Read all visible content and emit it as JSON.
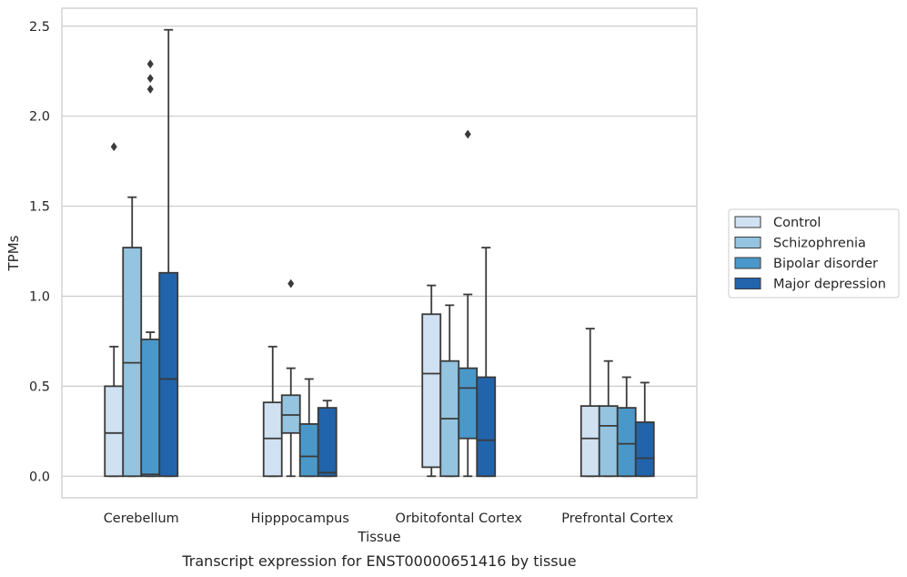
{
  "chart_data": {
    "type": "box",
    "title": "",
    "caption": "Transcript expression for ENST00000651416 by tissue",
    "xlabel": "Tissue",
    "ylabel": "TPMs",
    "ylim": [
      -0.12,
      2.6
    ],
    "yticks": [
      0.0,
      0.5,
      1.0,
      1.5,
      2.0,
      2.5
    ],
    "ytick_labels": [
      "0.0",
      "0.5",
      "1.0",
      "1.5",
      "2.0",
      "2.5"
    ],
    "grid": "horizontal",
    "legend_position": "right",
    "categories": [
      "Cerebellum",
      "Hipppocampus",
      "Orbitofontal Cortex",
      "Prefrontal Cortex"
    ],
    "series": [
      {
        "name": "Control",
        "color": "#d0e1f2",
        "boxes": [
          {
            "whisker_low": 0.0,
            "q1": 0.0,
            "median": 0.24,
            "q3": 0.5,
            "whisker_high": 0.72,
            "outliers": [
              1.83
            ]
          },
          {
            "whisker_low": 0.0,
            "q1": 0.0,
            "median": 0.21,
            "q3": 0.41,
            "whisker_high": 0.72,
            "outliers": []
          },
          {
            "whisker_low": 0.0,
            "q1": 0.05,
            "median": 0.57,
            "q3": 0.9,
            "whisker_high": 1.06,
            "outliers": []
          },
          {
            "whisker_low": 0.0,
            "q1": 0.0,
            "median": 0.21,
            "q3": 0.39,
            "whisker_high": 0.82,
            "outliers": []
          }
        ]
      },
      {
        "name": "Schizophrenia",
        "color": "#94c4df",
        "boxes": [
          {
            "whisker_low": 0.0,
            "q1": 0.0,
            "median": 0.63,
            "q3": 1.27,
            "whisker_high": 1.55,
            "outliers": []
          },
          {
            "whisker_low": 0.0,
            "q1": 0.24,
            "median": 0.34,
            "q3": 0.45,
            "whisker_high": 0.6,
            "outliers": [
              1.07
            ]
          },
          {
            "whisker_low": 0.0,
            "q1": 0.0,
            "median": 0.32,
            "q3": 0.64,
            "whisker_high": 0.95,
            "outliers": []
          },
          {
            "whisker_low": 0.0,
            "q1": 0.0,
            "median": 0.28,
            "q3": 0.39,
            "whisker_high": 0.64,
            "outliers": []
          }
        ]
      },
      {
        "name": "Bipolar disorder",
        "color": "#4a98c9",
        "boxes": [
          {
            "whisker_low": 0.0,
            "q1": 0.0,
            "median": 0.01,
            "q3": 0.76,
            "whisker_high": 0.8,
            "outliers": [
              2.15,
              2.21,
              2.29
            ]
          },
          {
            "whisker_low": 0.0,
            "q1": 0.0,
            "median": 0.11,
            "q3": 0.29,
            "whisker_high": 0.54,
            "outliers": []
          },
          {
            "whisker_low": 0.0,
            "q1": 0.21,
            "median": 0.49,
            "q3": 0.6,
            "whisker_high": 1.01,
            "outliers": [
              1.9
            ]
          },
          {
            "whisker_low": 0.0,
            "q1": 0.0,
            "median": 0.18,
            "q3": 0.38,
            "whisker_high": 0.55,
            "outliers": []
          }
        ]
      },
      {
        "name": "Major depression",
        "color": "#2164ab",
        "boxes": [
          {
            "whisker_low": 0.0,
            "q1": 0.0,
            "median": 0.54,
            "q3": 1.13,
            "whisker_high": 2.48,
            "outliers": []
          },
          {
            "whisker_low": 0.0,
            "q1": 0.0,
            "median": 0.02,
            "q3": 0.38,
            "whisker_high": 0.42,
            "outliers": []
          },
          {
            "whisker_low": 0.0,
            "q1": 0.0,
            "median": 0.2,
            "q3": 0.55,
            "whisker_high": 1.27,
            "outliers": []
          },
          {
            "whisker_low": 0.0,
            "q1": 0.0,
            "median": 0.1,
            "q3": 0.3,
            "whisker_high": 0.52,
            "outliers": []
          }
        ]
      }
    ]
  },
  "colors": {
    "grid": "#cccccc",
    "frame": "#cccccc",
    "box_edge": "#3a3a3a",
    "text": "#262626"
  }
}
